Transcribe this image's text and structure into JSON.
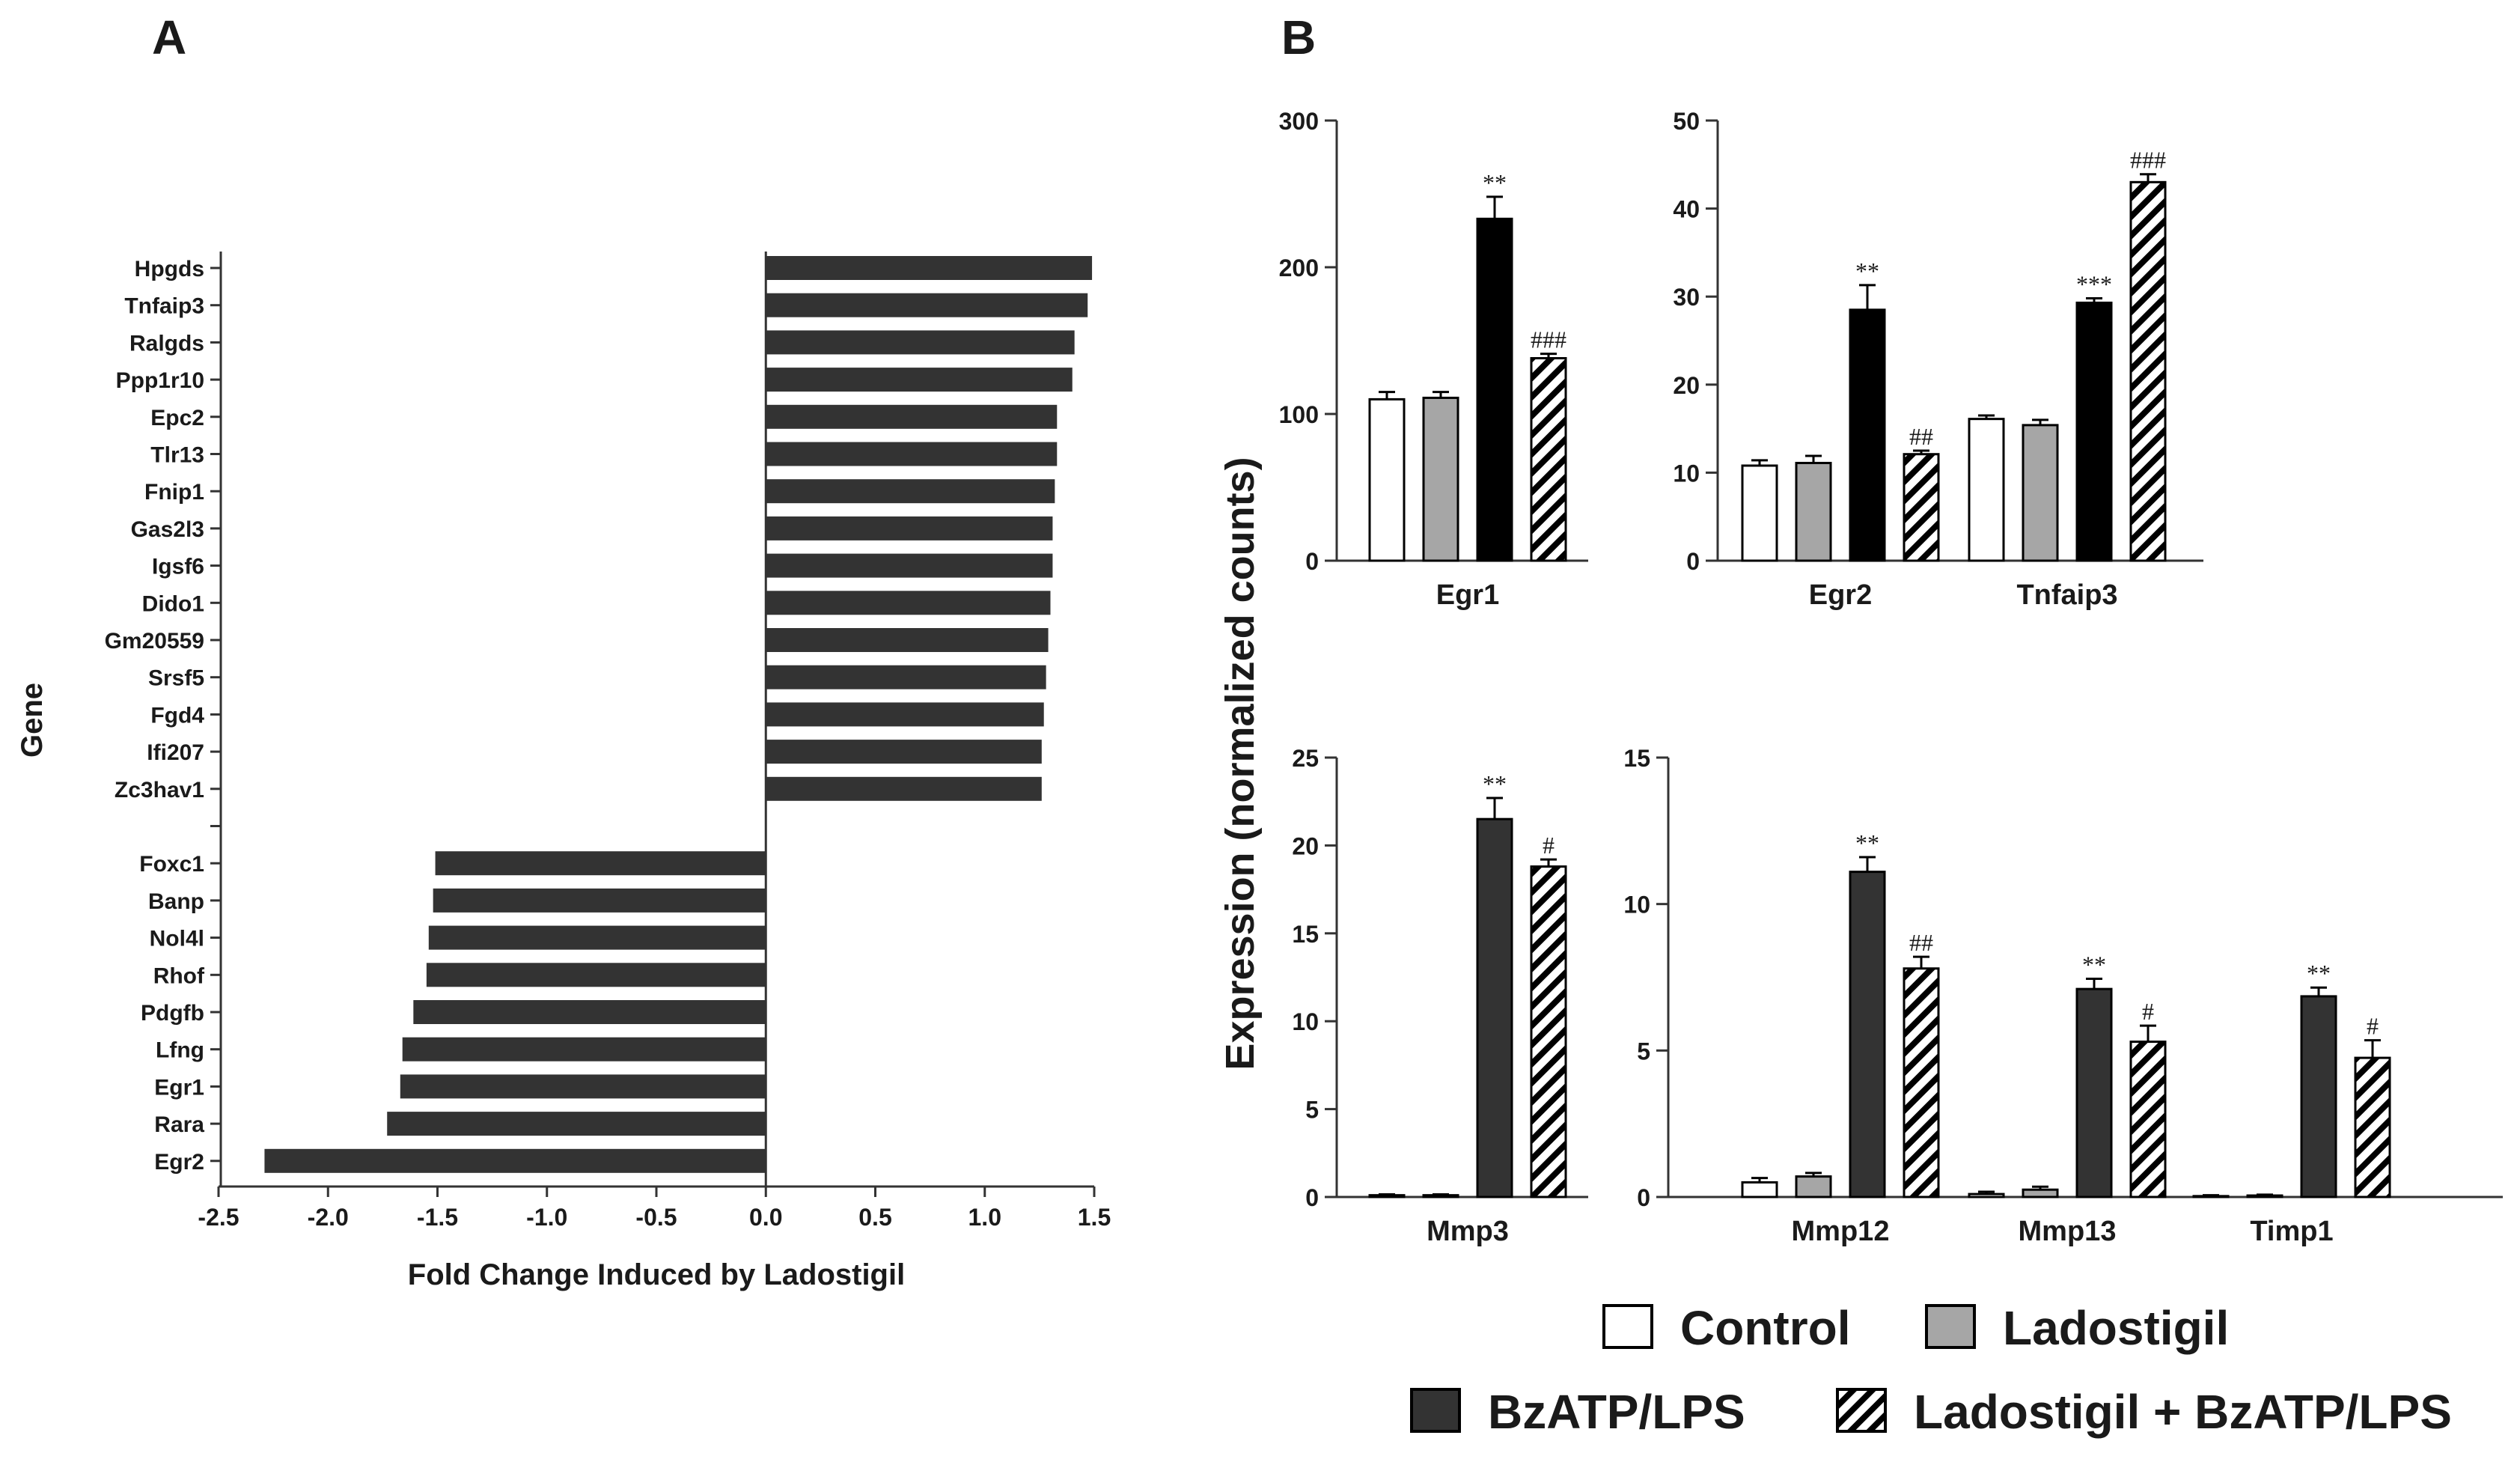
{
  "panels": {
    "a_letter": "A",
    "b_letter": "B"
  },
  "colors": {
    "bar_a": "#333333",
    "control_fill": "#ffffff",
    "ladostigil_fill": "#a6a6a6",
    "bzatp_fill_egr": "#000000",
    "bzatp_fill_mmp": "#333333",
    "axis": "#333333"
  },
  "shared_ylabel": "Expression (normalized counts)",
  "legend": [
    {
      "label": "Control",
      "style": "white"
    },
    {
      "label": "Ladostigil",
      "style": "gray"
    },
    {
      "label": "BzATP/LPS",
      "style": "dark"
    },
    {
      "label": "Ladostigil + BzATP/LPS",
      "style": "hatch"
    }
  ],
  "chart_data": [
    {
      "id": "A",
      "type": "bar",
      "orientation": "horizontal",
      "xlabel": "Fold Change Induced by Ladostigil",
      "ylabel": "Gene",
      "xlim": [
        -2.5,
        1.5
      ],
      "xticks": [
        "-2.5",
        "-2.0",
        "-1.5",
        "-1.0",
        "-0.5",
        "0.0",
        "0.5",
        "1.0",
        "1.5"
      ],
      "categories": [
        "Hpgds",
        "Tnfaip3",
        "Ralgds",
        "Ppp1r10",
        "Epc2",
        "Tlr13",
        "Fnip1",
        "Gas2l3",
        "Igsf6",
        "Dido1",
        "Gm20559",
        "Srsf5",
        "Fgd4",
        "Ifi207",
        "Zc3hav1",
        "",
        "Foxc1",
        "Banp",
        "Nol4l",
        "Rhof",
        "Pdgfb",
        "Lfng",
        "Egr1",
        "Rara",
        "Egr2"
      ],
      "values": [
        1.49,
        1.47,
        1.41,
        1.4,
        1.33,
        1.33,
        1.32,
        1.31,
        1.31,
        1.3,
        1.29,
        1.28,
        1.27,
        1.26,
        1.26,
        null,
        -1.51,
        -1.52,
        -1.54,
        -1.55,
        -1.61,
        -1.66,
        -1.67,
        -1.73,
        -2.29
      ]
    },
    {
      "id": "B-Egr1",
      "type": "bar",
      "categories": [
        "Egr1"
      ],
      "ylim": [
        0,
        300
      ],
      "yticks": [
        "0",
        "100",
        "200",
        "300"
      ],
      "series": [
        {
          "name": "Control",
          "values": [
            110
          ],
          "errors": [
            5
          ],
          "labels": [
            ""
          ]
        },
        {
          "name": "Ladostigil",
          "values": [
            111
          ],
          "errors": [
            4
          ],
          "labels": [
            ""
          ]
        },
        {
          "name": "BzATP/LPS",
          "values": [
            233
          ],
          "errors": [
            15
          ],
          "labels": [
            "**"
          ]
        },
        {
          "name": "Ladostigil + BzATP/LPS",
          "values": [
            138
          ],
          "errors": [
            3
          ],
          "labels": [
            "###"
          ]
        }
      ]
    },
    {
      "id": "B-Egr2-Tnfaip3",
      "type": "bar",
      "categories": [
        "Egr2",
        "Tnfaip3"
      ],
      "ylim": [
        0,
        50
      ],
      "yticks": [
        "0",
        "10",
        "20",
        "30",
        "40",
        "50"
      ],
      "series": [
        {
          "name": "Control",
          "values": [
            10.8,
            16.1
          ],
          "errors": [
            0.6,
            0.4
          ],
          "labels": [
            "",
            ""
          ]
        },
        {
          "name": "Ladostigil",
          "values": [
            11.1,
            15.4
          ],
          "errors": [
            0.8,
            0.6
          ],
          "labels": [
            "",
            ""
          ]
        },
        {
          "name": "BzATP/LPS",
          "values": [
            28.5,
            29.3
          ],
          "errors": [
            2.8,
            0.5
          ],
          "labels": [
            "**",
            "***"
          ]
        },
        {
          "name": "Ladostigil + BzATP/LPS",
          "values": [
            12.1,
            43.0
          ],
          "errors": [
            0.4,
            0.9
          ],
          "labels": [
            "##",
            "###"
          ]
        }
      ]
    },
    {
      "id": "B-Mmp3",
      "type": "bar",
      "categories": [
        "Mmp3"
      ],
      "ylim": [
        0,
        25
      ],
      "yticks": [
        "0",
        "5",
        "10",
        "15",
        "20",
        "25"
      ],
      "series": [
        {
          "name": "Control",
          "values": [
            0.1
          ],
          "errors": [
            0.05
          ],
          "labels": [
            ""
          ]
        },
        {
          "name": "Ladostigil",
          "values": [
            0.1
          ],
          "errors": [
            0.05
          ],
          "labels": [
            ""
          ]
        },
        {
          "name": "BzATP/LPS",
          "values": [
            21.5
          ],
          "errors": [
            1.2
          ],
          "labels": [
            "**"
          ]
        },
        {
          "name": "Ladostigil + BzATP/LPS",
          "values": [
            18.8
          ],
          "errors": [
            0.4
          ],
          "labels": [
            "#"
          ]
        }
      ]
    },
    {
      "id": "B-Mmp12-Mmp13-Timp1",
      "type": "bar",
      "categories": [
        "Mmp12",
        "Mmp13",
        "Timp1"
      ],
      "ylim": [
        0,
        15
      ],
      "yticks": [
        "0",
        "5",
        "10",
        "15"
      ],
      "series": [
        {
          "name": "Control",
          "values": [
            0.5,
            0.1,
            0.03
          ],
          "errors": [
            0.15,
            0.08,
            0.03
          ],
          "labels": [
            "",
            "",
            ""
          ]
        },
        {
          "name": "Ladostigil",
          "values": [
            0.7,
            0.25,
            0.05
          ],
          "errors": [
            0.12,
            0.1,
            0.03
          ],
          "labels": [
            "",
            "",
            ""
          ]
        },
        {
          "name": "BzATP/LPS",
          "values": [
            11.1,
            7.1,
            6.85
          ],
          "errors": [
            0.5,
            0.35,
            0.3
          ],
          "labels": [
            "**",
            "**",
            "**"
          ]
        },
        {
          "name": "Ladostigil + BzATP/LPS",
          "values": [
            7.8,
            5.3,
            4.75
          ],
          "errors": [
            0.4,
            0.55,
            0.6
          ],
          "labels": [
            "##",
            "#",
            "#"
          ]
        }
      ]
    }
  ]
}
